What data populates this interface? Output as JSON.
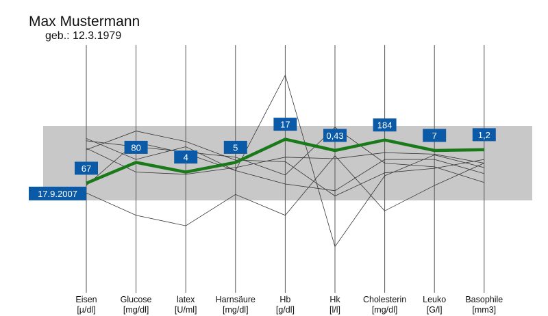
{
  "header": {
    "name": "Max Mustermann",
    "birth": "geb.: 12.3.1979"
  },
  "chart_data": {
    "type": "line",
    "title": "Max Mustermann",
    "subtitle": "geb.: 12.3.1979",
    "axes": [
      {
        "name": "Eisen",
        "unit": "[µ/dl]"
      },
      {
        "name": "Glucose",
        "unit": "[mg/dl]"
      },
      {
        "name": "latex",
        "unit": "[U/ml]"
      },
      {
        "name": "Harnsäure",
        "unit": "[mg/dl]"
      },
      {
        "name": "Hb",
        "unit": "[g/dl]"
      },
      {
        "name": "Hk",
        "unit": "[l/l]"
      },
      {
        "name": "Cholesterin",
        "unit": "[mg/dl]"
      },
      {
        "name": "Leuko",
        "unit": "[G/l]"
      },
      {
        "name": "Basophile",
        "unit": "[mm3]"
      }
    ],
    "normal_range": [
      0,
      1
    ],
    "yrange": [
      -0.35,
      1.7
    ],
    "highlighted_series": {
      "name": "17.9.2007",
      "labels": [
        "67",
        "80",
        "4",
        "5",
        "17",
        "0,43",
        "184",
        "7",
        "1,2"
      ],
      "values": [
        0.23,
        0.51,
        0.38,
        0.51,
        0.82,
        0.67,
        0.81,
        0.67,
        0.68
      ]
    },
    "history_series": [
      {
        "values": [
          0.68,
          0.93,
          0.79,
          0.54,
          0.52,
          0.06,
          0.37,
          0.43,
          0.55
        ]
      },
      {
        "values": [
          0.8,
          0.72,
          0.65,
          0.58,
          0.34,
          0.98,
          0.5,
          0.45,
          0.24
        ]
      },
      {
        "values": [
          0.83,
          0.55,
          0.72,
          0.4,
          1.68,
          -0.62,
          0.33,
          0.61,
          0.44
        ]
      },
      {
        "values": [
          0.7,
          0.38,
          0.35,
          0.44,
          0.58,
          0.56,
          0.64,
          0.62,
          0.5
        ]
      },
      {
        "values": [
          0.1,
          -0.2,
          -0.34,
          0.08,
          -0.2,
          0.6,
          -0.14,
          0.2,
          0.5
        ]
      },
      {
        "values": [
          0.2,
          0.78,
          0.63,
          0.4,
          0.22,
          0.13,
          0.55,
          0.55,
          0.36
        ]
      }
    ],
    "colors": {
      "normal_band": "#c8c8c8",
      "highlight_line": "#1a7a1a",
      "label_box": "#0b5aa8",
      "label_text": "#ffffff",
      "axis": "#555555",
      "history_line": "#333333"
    }
  }
}
